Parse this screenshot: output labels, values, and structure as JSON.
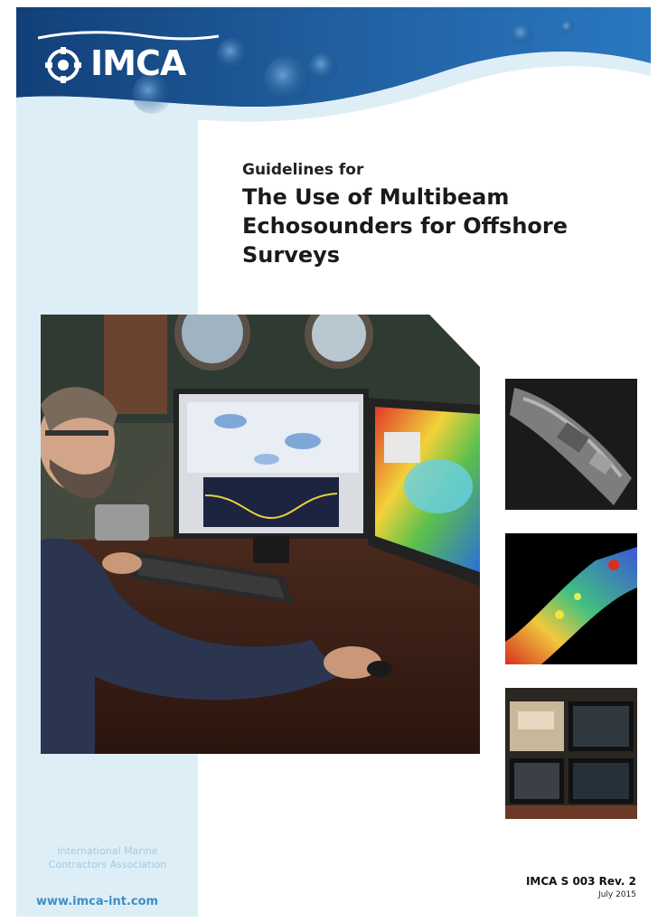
{
  "header": {
    "logo_text": "IMCA"
  },
  "title": {
    "pre": "Guidelines for",
    "lines": [
      "The Use of Multibeam",
      "Echosounders for Offshore",
      "Surveys"
    ]
  },
  "footer": {
    "org_lines": [
      "International Marine",
      "Contractors Association"
    ],
    "website": "www.imca-int.com",
    "doc_code": "IMCA S 003 Rev. 2",
    "doc_date": "July 2015"
  },
  "colors": {
    "band": "#deeef6",
    "header_blue": "#1f5c9c",
    "website_blue": "#3f8ec4"
  }
}
